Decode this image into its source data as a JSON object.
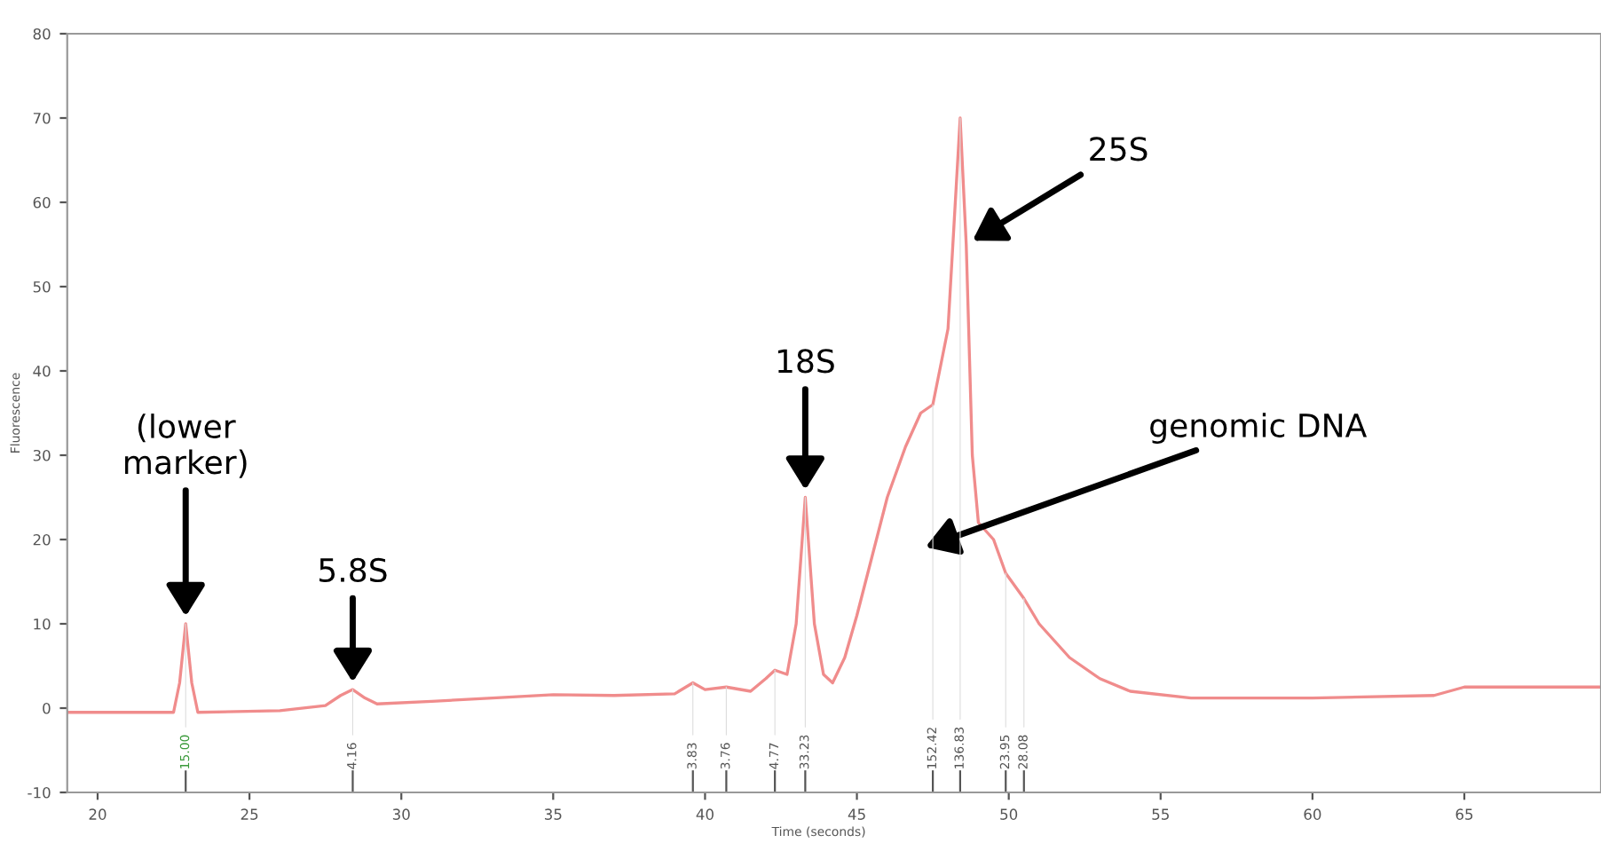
{
  "chart_data": {
    "type": "line",
    "xlabel": "Time (seconds)",
    "ylabel": "Fluorescence",
    "x": [
      19,
      22.5,
      22.7,
      22.9,
      23.1,
      23.3,
      26,
      27.5,
      28.0,
      28.4,
      28.8,
      29.2,
      31,
      33,
      35,
      37,
      39,
      39.6,
      40,
      40.7,
      41.5,
      42,
      42.3,
      42.7,
      43.0,
      43.3,
      43.6,
      43.9,
      44.2,
      44.6,
      45.0,
      45.5,
      46.0,
      46.6,
      47.1,
      47.5,
      48.0,
      48.4,
      48.6,
      48.8,
      49.0,
      49.5,
      49.9,
      50.5,
      51,
      52,
      53,
      54,
      56,
      60,
      64,
      65,
      69.5
    ],
    "series": [
      {
        "color": "#f08c8c",
        "values": [
          -0.5,
          -0.5,
          3,
          10,
          3,
          -0.5,
          -0.3,
          0.3,
          1.5,
          2.2,
          1.2,
          0.5,
          0.8,
          1.2,
          1.6,
          1.5,
          1.7,
          3,
          2.2,
          2.5,
          2,
          3.5,
          4.5,
          4,
          10,
          25,
          10,
          4,
          3,
          6,
          11,
          18,
          25,
          31,
          35,
          36,
          45,
          70,
          55,
          30,
          22,
          20,
          16,
          13,
          10,
          6,
          3.5,
          2,
          1.2,
          1.2,
          1.5,
          2.5,
          2.5
        ]
      }
    ],
    "xlim": [
      19,
      69.5
    ],
    "xticks": [
      20,
      25,
      30,
      35,
      40,
      45,
      50,
      55,
      60,
      65
    ],
    "ylim": [
      -10,
      80
    ],
    "yticks": [
      -10,
      0,
      10,
      20,
      30,
      40,
      50,
      60,
      70,
      80
    ],
    "grid": false,
    "legend": false,
    "marker": "none",
    "line_style": "solid",
    "annotations": [
      {
        "text": "(lower\nmarker)",
        "x": 22.9,
        "y": 10
      },
      {
        "text": "5.8S",
        "x": 28.4,
        "y": 2.2
      },
      {
        "text": "18S",
        "x": 43.3,
        "y": 25
      },
      {
        "text": "25S",
        "x": 48.6,
        "y": 55
      },
      "genomic DNA",
      {
        "text": "15.00",
        "x": 22.9,
        "y": 10
      },
      {
        "text": "4.16",
        "x": 28.4,
        "y": 2.2
      },
      {
        "text": "3.83",
        "x": 39.6,
        "y": 3
      },
      {
        "text": "3.76",
        "x": 40.7,
        "y": 2.5
      },
      {
        "text": "4.77",
        "x": 42.3,
        "y": 4.5
      },
      {
        "text": "33.23",
        "x": 43.3,
        "y": 25
      },
      {
        "text": "152.42",
        "x": 47.5,
        "y": 36
      },
      {
        "text": "136.83",
        "x": 48.4,
        "y": 70
      },
      {
        "text": "23.95",
        "x": 49.9,
        "y": 16
      },
      {
        "text": "28.08",
        "x": 50.5,
        "y": 13
      }
    ]
  }
}
